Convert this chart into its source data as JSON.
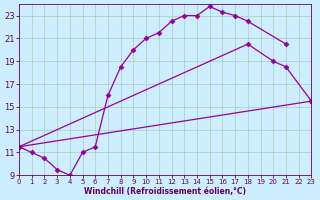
{
  "xlabel": "Windchill (Refroidissement éolien,°C)",
  "bg_color": "#cceeff",
  "grid_color": "#aaccbb",
  "line_color": "#990099",
  "marker": "D",
  "markersize": 2.5,
  "linewidth": 0.9,
  "xmin": 0,
  "xmax": 23,
  "ymin": 9,
  "ymax": 24,
  "yticks": [
    9,
    11,
    13,
    15,
    17,
    19,
    21,
    23
  ],
  "xticks": [
    0,
    1,
    2,
    3,
    4,
    5,
    6,
    7,
    8,
    9,
    10,
    11,
    12,
    13,
    14,
    15,
    16,
    17,
    18,
    19,
    20,
    21,
    22,
    23
  ],
  "line1_x": [
    0,
    1,
    2,
    3,
    4,
    5,
    6,
    7,
    8,
    9,
    10,
    11,
    12,
    13,
    14,
    15,
    16,
    17,
    18,
    21
  ],
  "line1_y": [
    11.5,
    11.0,
    10.5,
    9.5,
    9.0,
    11.0,
    11.5,
    16.0,
    18.5,
    20.0,
    21.0,
    21.5,
    22.5,
    23.0,
    23.0,
    23.8,
    23.3,
    23.0,
    22.5,
    20.5
  ],
  "line2_x": [
    0,
    18,
    20,
    21,
    23
  ],
  "line2_y": [
    11.5,
    20.5,
    19.0,
    18.5,
    15.5
  ],
  "line3_x": [
    0,
    23
  ],
  "line3_y": [
    11.5,
    15.5
  ]
}
